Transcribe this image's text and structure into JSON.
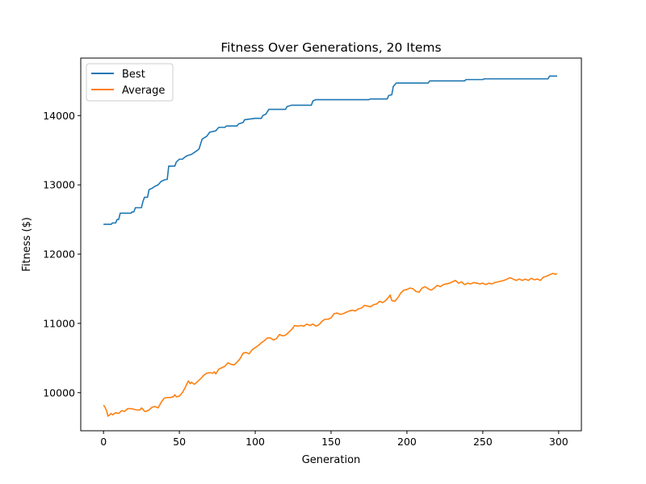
{
  "chart_data": {
    "type": "line",
    "title": "Fitness Over Generations, 20 Items",
    "xlabel": "Generation",
    "ylabel": "Fitness ($)",
    "xlim": [
      -15,
      315
    ],
    "ylim": [
      9450,
      14830
    ],
    "xticks": [
      0,
      50,
      100,
      150,
      200,
      250,
      300
    ],
    "yticks": [
      10000,
      11000,
      12000,
      13000,
      14000
    ],
    "grid": false,
    "legend_position": "top-left",
    "series": [
      {
        "name": "Best",
        "color": "#1f77b4",
        "points": [
          [
            0,
            12430
          ],
          [
            5,
            12430
          ],
          [
            6,
            12450
          ],
          [
            8,
            12450
          ],
          [
            9,
            12500
          ],
          [
            10,
            12500
          ],
          [
            11,
            12590
          ],
          [
            18,
            12590
          ],
          [
            19,
            12610
          ],
          [
            20,
            12610
          ],
          [
            21,
            12670
          ],
          [
            25,
            12670
          ],
          [
            26,
            12760
          ],
          [
            27,
            12820
          ],
          [
            29,
            12820
          ],
          [
            30,
            12930
          ],
          [
            32,
            12950
          ],
          [
            34,
            12980
          ],
          [
            36,
            13000
          ],
          [
            38,
            13050
          ],
          [
            40,
            13070
          ],
          [
            42,
            13080
          ],
          [
            43,
            13270
          ],
          [
            47,
            13270
          ],
          [
            48,
            13330
          ],
          [
            49,
            13350
          ],
          [
            50,
            13370
          ],
          [
            52,
            13370
          ],
          [
            53,
            13390
          ],
          [
            55,
            13420
          ],
          [
            58,
            13440
          ],
          [
            60,
            13470
          ],
          [
            62,
            13500
          ],
          [
            63,
            13520
          ],
          [
            65,
            13660
          ],
          [
            68,
            13700
          ],
          [
            70,
            13760
          ],
          [
            74,
            13780
          ],
          [
            76,
            13830
          ],
          [
            80,
            13830
          ],
          [
            81,
            13850
          ],
          [
            88,
            13850
          ],
          [
            89,
            13880
          ],
          [
            92,
            13900
          ],
          [
            93,
            13940
          ],
          [
            100,
            13960
          ],
          [
            104,
            13960
          ],
          [
            105,
            14000
          ],
          [
            107,
            14020
          ],
          [
            109,
            14090
          ],
          [
            120,
            14090
          ],
          [
            121,
            14130
          ],
          [
            124,
            14150
          ],
          [
            137,
            14150
          ],
          [
            138,
            14210
          ],
          [
            140,
            14230
          ],
          [
            175,
            14230
          ],
          [
            176,
            14240
          ],
          [
            187,
            14240
          ],
          [
            188,
            14290
          ],
          [
            190,
            14300
          ],
          [
            191,
            14420
          ],
          [
            193,
            14470
          ],
          [
            214,
            14470
          ],
          [
            215,
            14500
          ],
          [
            238,
            14500
          ],
          [
            239,
            14520
          ],
          [
            250,
            14520
          ],
          [
            251,
            14530
          ],
          [
            293,
            14530
          ],
          [
            294,
            14570
          ],
          [
            299,
            14570
          ]
        ]
      },
      {
        "name": "Average",
        "color": "#ff7f0e",
        "points": [
          [
            0,
            9820
          ],
          [
            1,
            9790
          ],
          [
            2,
            9740
          ],
          [
            3,
            9660
          ],
          [
            4,
            9680
          ],
          [
            5,
            9700
          ],
          [
            6,
            9680
          ],
          [
            8,
            9710
          ],
          [
            10,
            9700
          ],
          [
            12,
            9740
          ],
          [
            14,
            9730
          ],
          [
            16,
            9770
          ],
          [
            18,
            9770
          ],
          [
            20,
            9760
          ],
          [
            22,
            9750
          ],
          [
            24,
            9750
          ],
          [
            25,
            9780
          ],
          [
            26,
            9760
          ],
          [
            27,
            9730
          ],
          [
            28,
            9730
          ],
          [
            30,
            9750
          ],
          [
            32,
            9790
          ],
          [
            34,
            9800
          ],
          [
            36,
            9780
          ],
          [
            38,
            9860
          ],
          [
            40,
            9920
          ],
          [
            42,
            9930
          ],
          [
            44,
            9930
          ],
          [
            46,
            9940
          ],
          [
            47,
            9970
          ],
          [
            48,
            9940
          ],
          [
            50,
            9950
          ],
          [
            52,
            10000
          ],
          [
            54,
            10080
          ],
          [
            55,
            10130
          ],
          [
            56,
            10170
          ],
          [
            57,
            10130
          ],
          [
            58,
            10150
          ],
          [
            60,
            10120
          ],
          [
            62,
            10160
          ],
          [
            64,
            10200
          ],
          [
            66,
            10250
          ],
          [
            68,
            10280
          ],
          [
            70,
            10290
          ],
          [
            72,
            10280
          ],
          [
            73,
            10300
          ],
          [
            74,
            10270
          ],
          [
            76,
            10340
          ],
          [
            78,
            10360
          ],
          [
            80,
            10380
          ],
          [
            82,
            10430
          ],
          [
            84,
            10410
          ],
          [
            86,
            10400
          ],
          [
            88,
            10440
          ],
          [
            90,
            10490
          ],
          [
            92,
            10570
          ],
          [
            94,
            10580
          ],
          [
            96,
            10560
          ],
          [
            98,
            10620
          ],
          [
            100,
            10650
          ],
          [
            102,
            10680
          ],
          [
            104,
            10720
          ],
          [
            106,
            10750
          ],
          [
            108,
            10790
          ],
          [
            110,
            10790
          ],
          [
            112,
            10760
          ],
          [
            114,
            10780
          ],
          [
            116,
            10840
          ],
          [
            118,
            10820
          ],
          [
            120,
            10830
          ],
          [
            122,
            10870
          ],
          [
            124,
            10910
          ],
          [
            126,
            10970
          ],
          [
            128,
            10960
          ],
          [
            130,
            10970
          ],
          [
            132,
            10960
          ],
          [
            134,
            10990
          ],
          [
            136,
            10970
          ],
          [
            138,
            10990
          ],
          [
            140,
            10960
          ],
          [
            142,
            10980
          ],
          [
            144,
            11030
          ],
          [
            146,
            11060
          ],
          [
            148,
            11060
          ],
          [
            150,
            11080
          ],
          [
            152,
            11140
          ],
          [
            154,
            11150
          ],
          [
            156,
            11130
          ],
          [
            158,
            11140
          ],
          [
            160,
            11160
          ],
          [
            162,
            11180
          ],
          [
            164,
            11190
          ],
          [
            166,
            11180
          ],
          [
            168,
            11210
          ],
          [
            170,
            11220
          ],
          [
            172,
            11260
          ],
          [
            174,
            11250
          ],
          [
            176,
            11240
          ],
          [
            178,
            11270
          ],
          [
            180,
            11280
          ],
          [
            182,
            11320
          ],
          [
            184,
            11300
          ],
          [
            186,
            11330
          ],
          [
            188,
            11380
          ],
          [
            189,
            11410
          ],
          [
            190,
            11330
          ],
          [
            192,
            11320
          ],
          [
            194,
            11370
          ],
          [
            196,
            11440
          ],
          [
            198,
            11480
          ],
          [
            200,
            11490
          ],
          [
            202,
            11510
          ],
          [
            204,
            11500
          ],
          [
            206,
            11460
          ],
          [
            208,
            11450
          ],
          [
            210,
            11510
          ],
          [
            212,
            11530
          ],
          [
            214,
            11500
          ],
          [
            216,
            11480
          ],
          [
            218,
            11510
          ],
          [
            220,
            11550
          ],
          [
            222,
            11530
          ],
          [
            224,
            11560
          ],
          [
            226,
            11570
          ],
          [
            228,
            11580
          ],
          [
            230,
            11600
          ],
          [
            232,
            11620
          ],
          [
            234,
            11580
          ],
          [
            236,
            11600
          ],
          [
            238,
            11560
          ],
          [
            240,
            11580
          ],
          [
            242,
            11570
          ],
          [
            244,
            11590
          ],
          [
            246,
            11580
          ],
          [
            248,
            11570
          ],
          [
            250,
            11580
          ],
          [
            252,
            11560
          ],
          [
            254,
            11580
          ],
          [
            256,
            11570
          ],
          [
            258,
            11590
          ],
          [
            260,
            11600
          ],
          [
            262,
            11610
          ],
          [
            264,
            11620
          ],
          [
            266,
            11640
          ],
          [
            268,
            11660
          ],
          [
            270,
            11640
          ],
          [
            272,
            11620
          ],
          [
            274,
            11640
          ],
          [
            276,
            11620
          ],
          [
            278,
            11640
          ],
          [
            280,
            11620
          ],
          [
            282,
            11650
          ],
          [
            284,
            11630
          ],
          [
            286,
            11640
          ],
          [
            288,
            11620
          ],
          [
            290,
            11670
          ],
          [
            292,
            11680
          ],
          [
            294,
            11700
          ],
          [
            296,
            11720
          ],
          [
            298,
            11710
          ],
          [
            299,
            11720
          ]
        ]
      }
    ]
  }
}
